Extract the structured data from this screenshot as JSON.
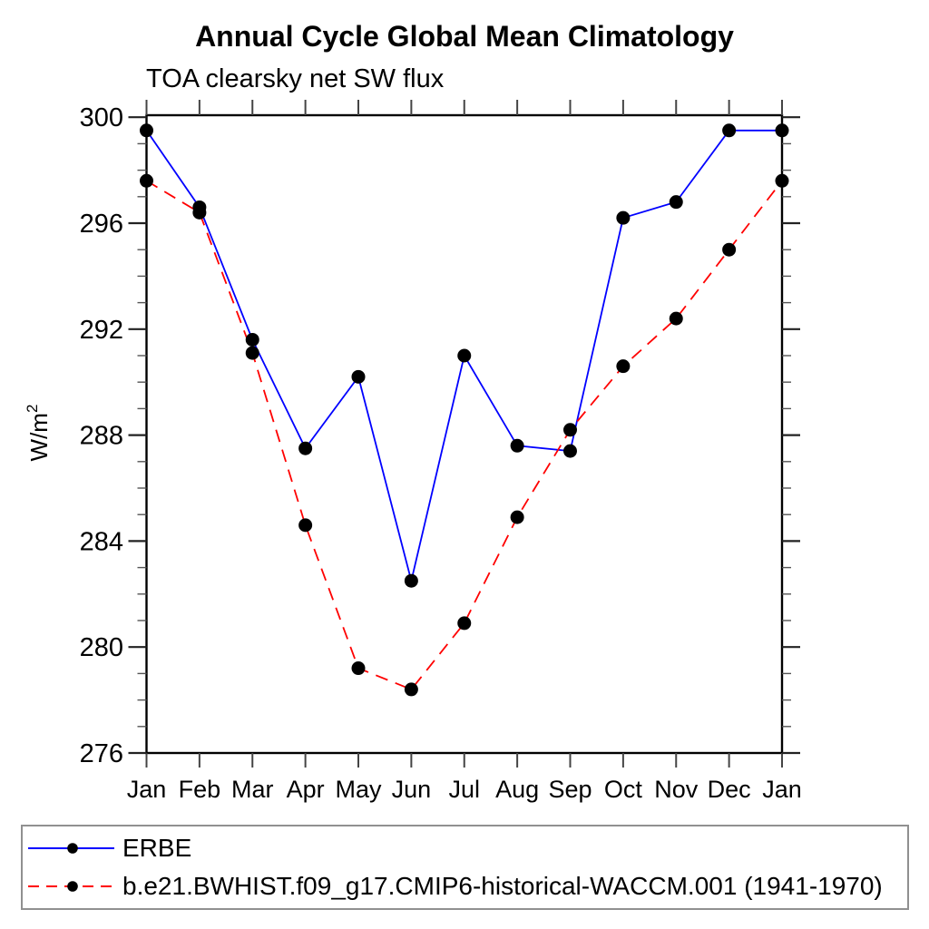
{
  "title": "Annual Cycle Global Mean Climatology",
  "subtitle": "TOA clearsky net SW flux",
  "chart_data": {
    "type": "line",
    "x_categories": [
      "Jan",
      "Feb",
      "Mar",
      "Apr",
      "May",
      "Jun",
      "Jul",
      "Aug",
      "Sep",
      "Oct",
      "Nov",
      "Dec",
      "Jan"
    ],
    "ylabel": "W/m",
    "ylabel_superscript": "2",
    "ylim": [
      276,
      300
    ],
    "ytick_major": [
      276,
      280,
      284,
      288,
      292,
      296,
      300
    ],
    "ytick_minor_step": 1,
    "grid": false,
    "legend_position": "bottom",
    "frame_color": "#000000",
    "marker": {
      "shape": "circle",
      "color": "#000000"
    },
    "series": [
      {
        "name": "ERBE",
        "color": "#0000ff",
        "line_style": "solid",
        "values": [
          299.5,
          296.6,
          291.6,
          287.5,
          290.2,
          282.5,
          291.0,
          287.6,
          287.4,
          296.2,
          296.8,
          299.5,
          299.5
        ]
      },
      {
        "name": "b.e21.BWHIST.f09_g17.CMIP6-historical-WACCM.001 (1941-1970)",
        "color": "#ff0000",
        "line_style": "dashed",
        "values": [
          297.6,
          296.4,
          291.1,
          284.6,
          279.2,
          278.4,
          280.9,
          284.9,
          288.2,
          290.6,
          292.4,
          295.0,
          297.6
        ]
      }
    ]
  }
}
